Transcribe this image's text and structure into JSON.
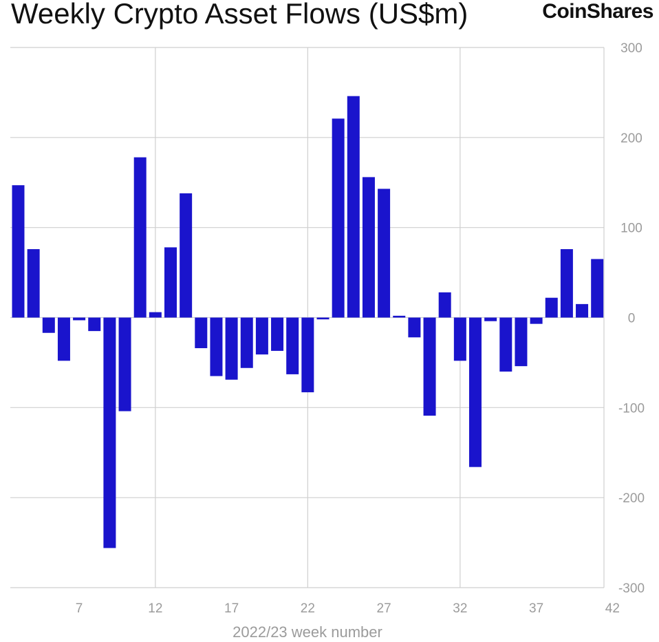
{
  "header": {
    "title": "Weekly Crypto Asset Flows (US$m)",
    "brand": "CoinShares"
  },
  "chart_data": {
    "type": "bar",
    "title": "Weekly Crypto Asset Flows (US$m)",
    "xlabel": "2022/23 week number",
    "ylabel": "",
    "ylim": [
      -300,
      300
    ],
    "yticks": [
      300,
      200,
      100,
      0,
      -100,
      -200,
      -300
    ],
    "xticks": [
      7,
      12,
      17,
      22,
      27,
      32,
      37,
      42
    ],
    "grid": true,
    "y_axis_side": "right",
    "bar_color": "#1a14cc",
    "x": [
      3,
      4,
      5,
      6,
      7,
      8,
      9,
      10,
      11,
      12,
      13,
      14,
      15,
      16,
      17,
      18,
      19,
      20,
      21,
      22,
      23,
      24,
      25,
      26,
      27,
      28,
      29,
      30,
      31,
      32,
      33,
      34,
      35,
      36,
      37,
      38,
      39,
      40,
      41,
      42
    ],
    "values": [
      147,
      76,
      -17,
      -48,
      -3,
      -15,
      -256,
      -104,
      178,
      6,
      78,
      138,
      -34,
      -65,
      -69,
      -56,
      -41,
      -37,
      -63,
      -83,
      -2,
      221,
      246,
      156,
      143,
      2,
      -22,
      -109,
      28,
      -48,
      -166,
      -4,
      -60,
      -54,
      -7,
      22,
      76,
      15,
      65,
      0
    ]
  }
}
